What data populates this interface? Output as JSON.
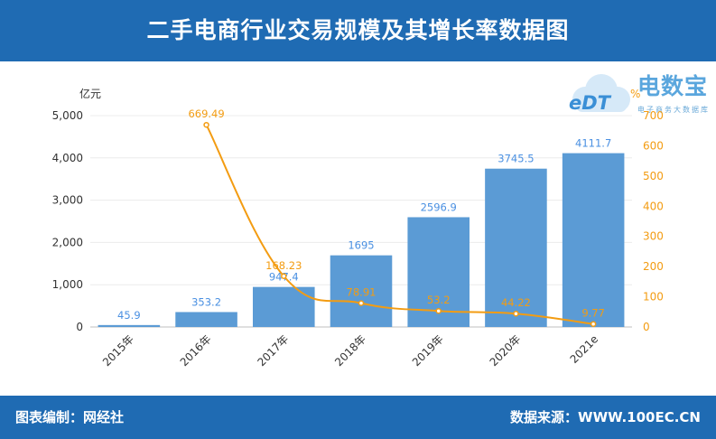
{
  "header": {
    "title": "二手电商行业交易规模及其增长率数据图"
  },
  "footer": {
    "left": "图表编制：网经社",
    "right": "数据来源：WWW.100EC.CN"
  },
  "logo": {
    "mark": "eDT",
    "name": "电数宝",
    "subtitle": "电子商务大数据库"
  },
  "colors": {
    "header": "#1f6bb3",
    "bar": "#5b9bd5",
    "line": "#f39c12",
    "bar_label": "#4a90e2"
  },
  "chart_data": {
    "type": "bar",
    "categories": [
      "2015年",
      "2016年",
      "2017年",
      "2018年",
      "2019年",
      "2020年",
      "2021e"
    ],
    "series": [
      {
        "values": [
          45.9,
          353.2,
          947.4,
          1695,
          2596.9,
          3745.5,
          4111.7
        ],
        "axis": "left"
      },
      {
        "type": "line",
        "values": [
          null,
          669.49,
          168.23,
          78.91,
          53.2,
          44.22,
          9.77
        ],
        "axis": "right"
      }
    ],
    "bar_labels": [
      "45.9",
      "353.2",
      "947.4",
      "1695",
      "2596.9",
      "3745.5",
      "4111.7"
    ],
    "line_labels": [
      "",
      "669.49",
      "168.23",
      "78.91",
      "53.2",
      "44.22",
      "9.77"
    ],
    "y_left": {
      "label": "亿元",
      "ylim": [
        0,
        5000
      ],
      "ticks": [
        "0",
        "1,000",
        "2,000",
        "3,000",
        "4,000",
        "5,000"
      ],
      "tick_values": [
        0,
        1000,
        2000,
        3000,
        4000,
        5000
      ]
    },
    "y_right": {
      "label": "%",
      "ylim": [
        0,
        700
      ],
      "ticks": [
        "0",
        "100",
        "200",
        "300",
        "400",
        "500",
        "600",
        "700"
      ],
      "tick_values": [
        0,
        100,
        200,
        300,
        400,
        500,
        600,
        700
      ]
    },
    "grid": true
  }
}
